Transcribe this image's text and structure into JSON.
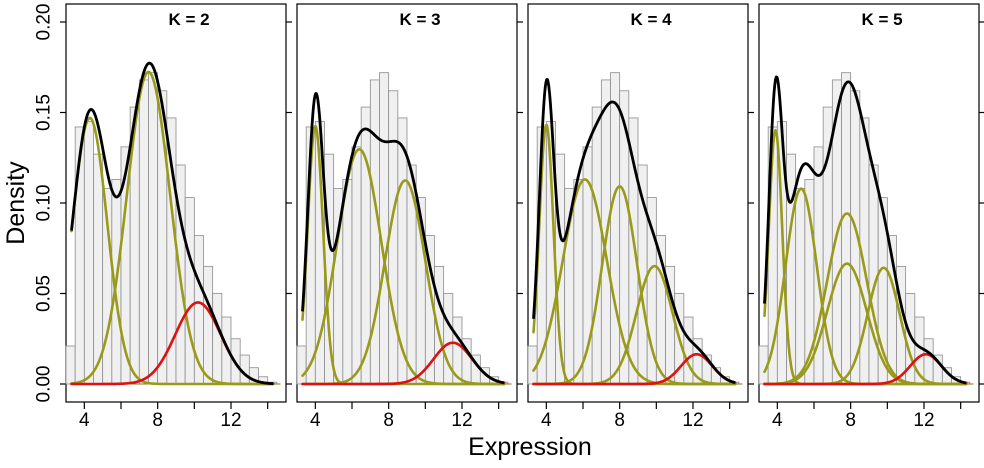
{
  "chart_data": {
    "type": "histogram-mixture-density",
    "xlabel": "Expression",
    "ylabel": "Density",
    "xlim": [
      3,
      15
    ],
    "ylim": [
      0,
      0.2
    ],
    "xticks": [
      4,
      8,
      12
    ],
    "xtick_labels": [
      "4",
      "8",
      "12"
    ],
    "yticks": [
      0.0,
      0.05,
      0.1,
      0.15,
      0.2
    ],
    "ytick_labels": [
      "0.00",
      "0.05",
      "0.10",
      "0.15",
      "0.20"
    ],
    "colors": {
      "histogram_fill": "#f0f0f0",
      "histogram_edge": "#8c8c8c",
      "mixture_total": "#000000",
      "component": "#9a9a1a",
      "last_component": "#dd1111"
    },
    "histogram": {
      "bin_edges": [
        3,
        3.5,
        4,
        4.5,
        5,
        5.5,
        6,
        6.5,
        7,
        7.5,
        8,
        8.5,
        9,
        9.5,
        10,
        10.5,
        11,
        11.5,
        12,
        12.5,
        13,
        13.5,
        14,
        14.5
      ],
      "density": [
        0.021,
        0.142,
        0.145,
        0.127,
        0.108,
        0.113,
        0.131,
        0.153,
        0.168,
        0.172,
        0.162,
        0.147,
        0.121,
        0.103,
        0.082,
        0.065,
        0.05,
        0.037,
        0.025,
        0.016,
        0.009,
        0.004,
        0.001
      ]
    },
    "panels": [
      {
        "title": "K = 2",
        "components": [
          {
            "weight": 0.35,
            "mean": 4.3,
            "sd": 0.95,
            "color": "olive"
          },
          {
            "weight": 0.51,
            "mean": 7.5,
            "sd": 1.18,
            "color": "olive"
          },
          {
            "weight": 0.14,
            "mean": 10.2,
            "sd": 1.24,
            "color": "red"
          }
        ]
      },
      {
        "title": "K = 3",
        "components": [
          {
            "weight": 0.15,
            "mean": 4.0,
            "sd": 0.42,
            "color": "olive"
          },
          {
            "weight": 0.39,
            "mean": 6.4,
            "sd": 1.2,
            "color": "olive"
          },
          {
            "weight": 0.31,
            "mean": 8.9,
            "sd": 1.1,
            "color": "olive"
          },
          {
            "weight": 0.06,
            "mean": 11.5,
            "sd": 1.05,
            "color": "red"
          }
        ]
      },
      {
        "title": "K = 4",
        "components": [
          {
            "weight": 0.14,
            "mean": 4.0,
            "sd": 0.39,
            "color": "olive"
          },
          {
            "weight": 0.34,
            "mean": 6.1,
            "sd": 1.2,
            "color": "olive"
          },
          {
            "weight": 0.26,
            "mean": 8.0,
            "sd": 0.95,
            "color": "olive"
          },
          {
            "weight": 0.16,
            "mean": 9.9,
            "sd": 0.98,
            "color": "olive"
          },
          {
            "weight": 0.035,
            "mean": 12.2,
            "sd": 0.85,
            "color": "red"
          }
        ]
      },
      {
        "title": "K = 5",
        "components": [
          {
            "weight": 0.13,
            "mean": 3.9,
            "sd": 0.37,
            "color": "olive"
          },
          {
            "weight": 0.23,
            "mean": 5.3,
            "sd": 0.85,
            "color": "olive"
          },
          {
            "weight": 0.255,
            "mean": 7.8,
            "sd": 1.08,
            "color": "olive"
          },
          {
            "weight": 0.18,
            "mean": 7.8,
            "sd": 1.08,
            "color": "olive"
          },
          {
            "weight": 0.14,
            "mean": 9.8,
            "sd": 0.87,
            "color": "olive"
          },
          {
            "weight": 0.035,
            "mean": 12.1,
            "sd": 0.85,
            "color": "red"
          }
        ]
      }
    ]
  }
}
